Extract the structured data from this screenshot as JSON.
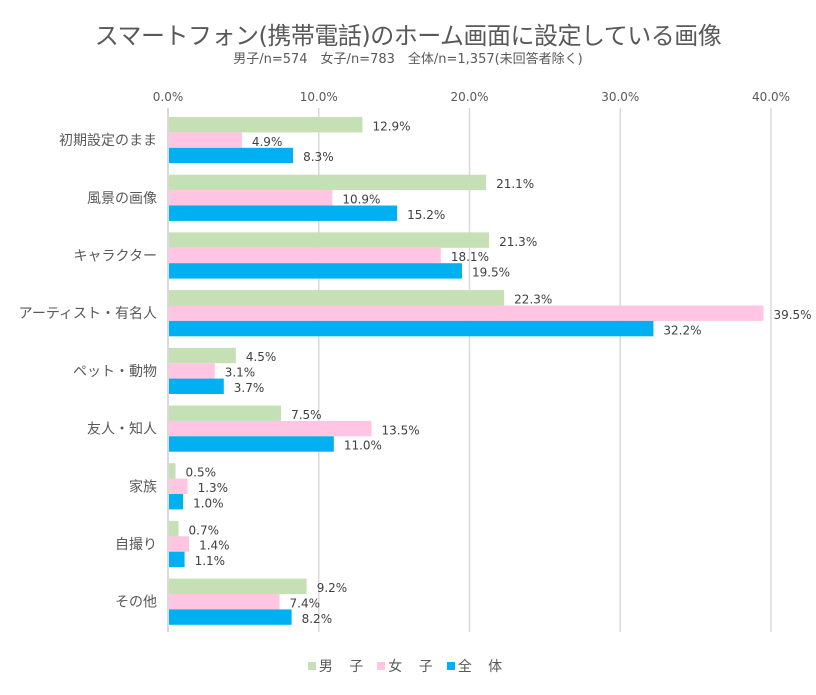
{
  "chart_data": {
    "type": "bar",
    "orientation": "horizontal",
    "title": "スマートフォン(携帯電話)のホーム画面に設定している画像",
    "subtitle": "男子/n=574　女子/n=783　全体/n=1,357(未回答者除く)",
    "xlabel": "",
    "ylabel": "",
    "xlim": [
      0,
      40
    ],
    "x_ticks": [
      0,
      10,
      20,
      30,
      40
    ],
    "x_tick_labels": [
      "0.0%",
      "10.0%",
      "20.0%",
      "30.0%",
      "40.0%"
    ],
    "x_axis_position": "top",
    "grid": true,
    "legend_position": "bottom",
    "categories": [
      "初期設定のまま",
      "風景の画像",
      "キャラクター",
      "アーティスト・有名人",
      "ペット・動物",
      "友人・知人",
      "家族",
      "自撮り",
      "その他"
    ],
    "series": [
      {
        "name": "男 子",
        "color": "#c5e0b4",
        "values": [
          12.9,
          21.1,
          21.3,
          22.3,
          4.5,
          7.5,
          0.5,
          0.7,
          9.2
        ]
      },
      {
        "name": "女 子",
        "color": "#ffc5e2",
        "values": [
          4.9,
          10.9,
          18.1,
          39.5,
          3.1,
          13.5,
          1.3,
          1.4,
          7.4
        ]
      },
      {
        "name": "全 体",
        "color": "#00b0f0",
        "values": [
          8.3,
          15.2,
          19.5,
          32.2,
          3.7,
          11.0,
          1.0,
          1.1,
          8.2
        ]
      }
    ],
    "value_format": "percent_1dp"
  }
}
